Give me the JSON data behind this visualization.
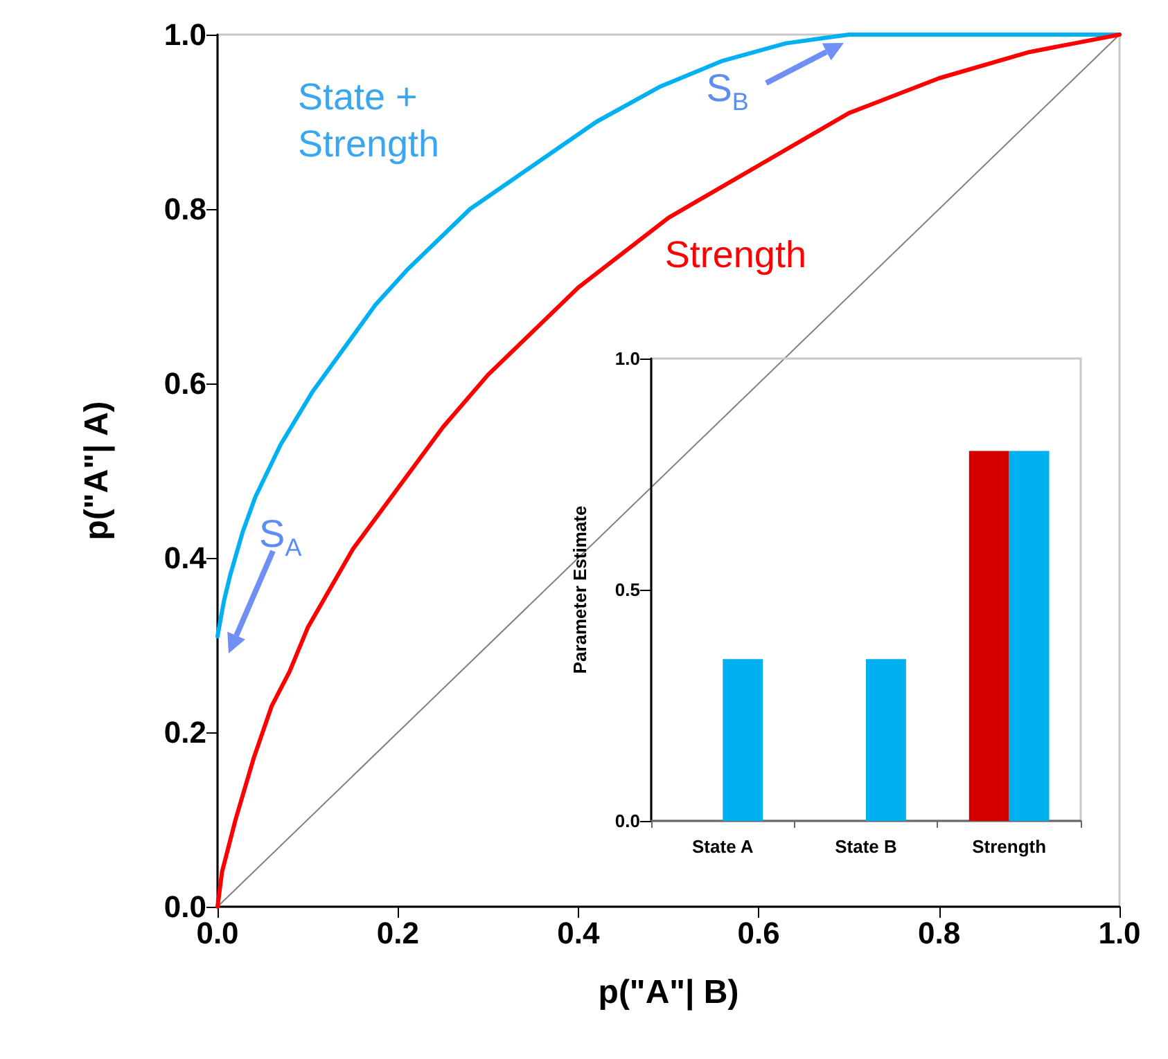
{
  "chart_data": [
    {
      "type": "line",
      "xlabel": "p(\"A\"| B)",
      "ylabel": "p(\"A\"| A)",
      "marker": "none",
      "xlim": [
        0,
        1
      ],
      "ylim": [
        0,
        1
      ],
      "xticks": [
        {
          "value": 0,
          "label": "0.0"
        },
        {
          "value": 0.2,
          "label": "0.2"
        },
        {
          "value": 0.4,
          "label": "0.4"
        },
        {
          "value": 0.6,
          "label": "0.6"
        },
        {
          "value": 0.8,
          "label": "0.8"
        },
        {
          "value": 1,
          "label": "1.0"
        }
      ],
      "yticks": [
        {
          "value": 0,
          "label": "0.0"
        },
        {
          "value": 0.2,
          "label": "0.2"
        },
        {
          "value": 0.4,
          "label": "0.4"
        },
        {
          "value": 0.6,
          "label": "0.6"
        },
        {
          "value": 0.8,
          "label": "0.8"
        },
        {
          "value": 1,
          "label": "1.0"
        }
      ],
      "series": [
        {
          "name": "State + Strength",
          "color": "#00b0f0",
          "x": [
            0,
            0.007,
            0.014,
            0.028,
            0.042,
            0.056,
            0.07,
            0.105,
            0.14,
            0.175,
            0.21,
            0.28,
            0.35,
            0.42,
            0.49,
            0.56,
            0.63,
            0.665,
            0.7,
            1
          ],
          "values": [
            0.31,
            0.35,
            0.38,
            0.43,
            0.47,
            0.5,
            0.53,
            0.59,
            0.64,
            0.69,
            0.73,
            0.8,
            0.85,
            0.9,
            0.94,
            0.97,
            0.99,
            0.995,
            1,
            1
          ]
        },
        {
          "name": "Strength",
          "color": "#ff0000",
          "x": [
            0,
            0.005,
            0.01,
            0.02,
            0.04,
            0.06,
            0.08,
            0.1,
            0.15,
            0.2,
            0.25,
            0.3,
            0.4,
            0.5,
            0.6,
            0.7,
            0.8,
            0.9,
            0.95,
            1
          ],
          "values": [
            0,
            0.04,
            0.06,
            0.1,
            0.17,
            0.23,
            0.27,
            0.32,
            0.41,
            0.48,
            0.55,
            0.61,
            0.71,
            0.79,
            0.85,
            0.91,
            0.95,
            0.98,
            0.99,
            1
          ]
        },
        {
          "color": "#808080",
          "x": [
            0,
            1
          ],
          "values": [
            0,
            1
          ]
        }
      ],
      "annotations": [
        {
          "text": "S$_{A}$",
          "x": 0,
          "y": 0.31
        },
        {
          "text": "S$_{B}$",
          "x": 0.7,
          "y": 1
        }
      ]
    },
    {
      "type": "bar",
      "ylabel": "Parameter Estimate",
      "categories": [
        "State A",
        "State B",
        "Strength"
      ],
      "ylim": [
        0,
        1
      ],
      "yticks": [
        {
          "value": 0,
          "label": "0.0"
        },
        {
          "value": 0.5,
          "label": "0.5"
        },
        {
          "value": 1,
          "label": "1.0"
        }
      ],
      "series": [
        {
          "color": "#d40000",
          "values": [
            null,
            null,
            0.8
          ]
        },
        {
          "color": "#00b0f0",
          "values": [
            0.35,
            0.35,
            0.8
          ]
        }
      ]
    }
  ]
}
